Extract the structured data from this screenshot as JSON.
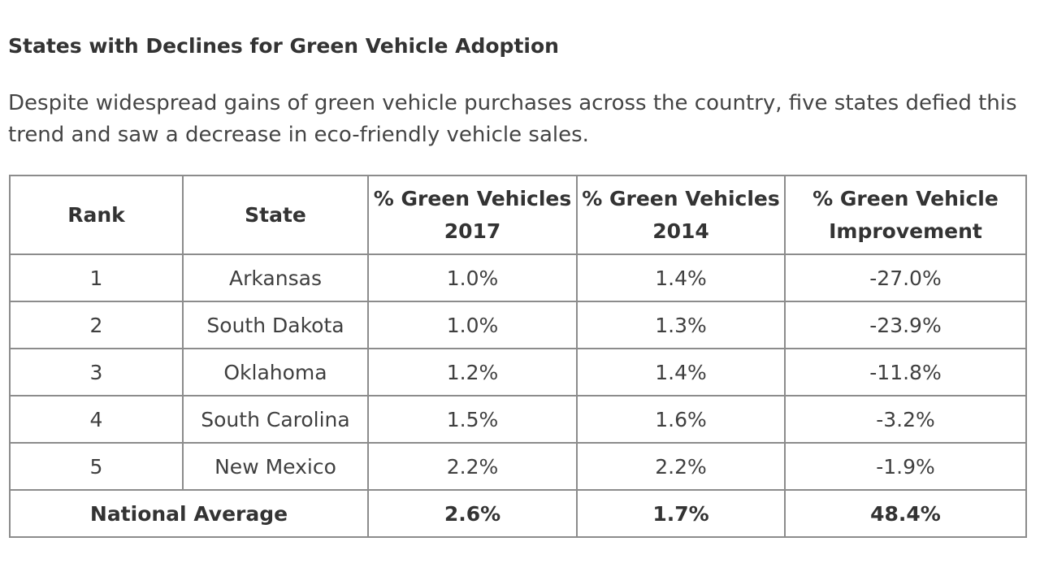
{
  "title": "States with Declines for Green Vehicle Adoption",
  "intro": "Despite widespread gains of green vehicle purchases across the country, five states defied this trend and saw a decrease in eco-friendly vehicle sales.",
  "table": {
    "headers": {
      "rank": "Rank",
      "state": "State",
      "pct2017": "% Green Vehicles 2017",
      "pct2014": "% Green Vehicles 2014",
      "improvement": "% Green Vehicle Improvement"
    },
    "rows": [
      {
        "rank": "1",
        "state": "Arkansas",
        "pct2017": "1.0%",
        "pct2014": "1.4%",
        "improvement": "-27.0%"
      },
      {
        "rank": "2",
        "state": "South Dakota",
        "pct2017": "1.0%",
        "pct2014": "1.3%",
        "improvement": "-23.9%"
      },
      {
        "rank": "3",
        "state": "Oklahoma",
        "pct2017": "1.2%",
        "pct2014": "1.4%",
        "improvement": "-11.8%"
      },
      {
        "rank": "4",
        "state": "South Carolina",
        "pct2017": "1.5%",
        "pct2014": "1.6%",
        "improvement": "-3.2%"
      },
      {
        "rank": "5",
        "state": "New Mexico",
        "pct2017": "2.2%",
        "pct2014": "2.2%",
        "improvement": "-1.9%"
      }
    ],
    "total": {
      "label": "National Average",
      "pct2017": "2.6%",
      "pct2014": "1.7%",
      "improvement": "48.4%"
    }
  }
}
